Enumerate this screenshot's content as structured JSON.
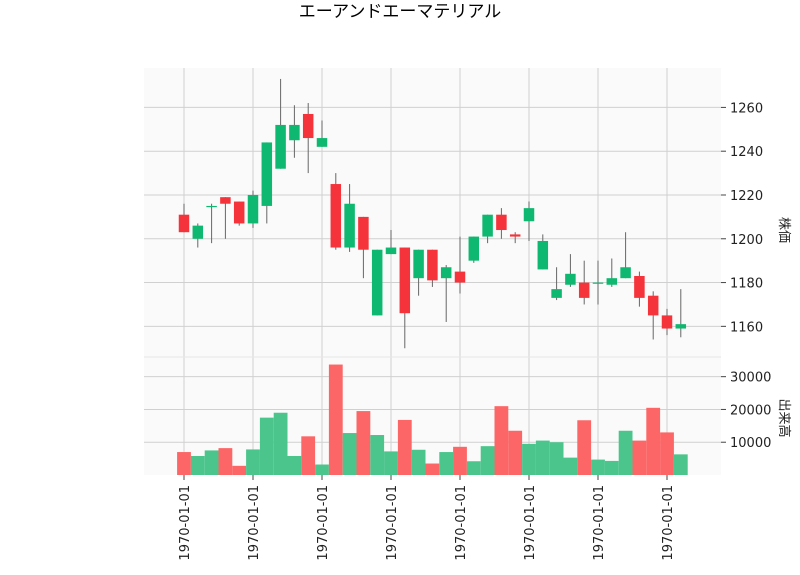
{
  "chart_data": {
    "type": "candlestick",
    "title": "エーアンドエーマテリアル",
    "ylabel_price": "株価",
    "ylabel_volume": "出来高",
    "x_tick_labels": [
      "1970-01-01",
      "1970-01-01",
      "1970-01-01",
      "1970-01-01",
      "1970-01-01",
      "1970-01-01",
      "1970-01-01",
      "1970-01-01"
    ],
    "x_tick_indices": [
      0,
      5,
      10,
      15,
      20,
      25,
      30,
      35
    ],
    "price_ylim": [
      1146,
      1278
    ],
    "price_ticks": [
      1160,
      1180,
      1200,
      1220,
      1240,
      1260
    ],
    "volume_ylim": [
      0,
      36000
    ],
    "volume_ticks": [
      10000,
      20000,
      30000
    ],
    "up_color": "#0fb870",
    "down_color": "#f5333b",
    "up_volume_color": "#4bc58c",
    "down_volume_color": "#fc6666",
    "grid": true,
    "candles": [
      {
        "o": 1211,
        "h": 1216,
        "l": 1203,
        "c": 1203,
        "v": 7000
      },
      {
        "o": 1200,
        "h": 1207,
        "l": 1196,
        "c": 1206,
        "v": 5800
      },
      {
        "o": 1215,
        "h": 1216,
        "l": 1198,
        "c": 1215,
        "v": 7500
      },
      {
        "o": 1219,
        "h": 1219,
        "l": 1200,
        "c": 1216,
        "v": 8200
      },
      {
        "o": 1217,
        "h": 1217,
        "l": 1206,
        "c": 1207,
        "v": 2800
      },
      {
        "o": 1207,
        "h": 1222,
        "l": 1205,
        "c": 1220,
        "v": 7800
      },
      {
        "o": 1215,
        "h": 1244,
        "l": 1207,
        "c": 1244,
        "v": 17500
      },
      {
        "o": 1232,
        "h": 1273,
        "l": 1232,
        "c": 1252,
        "v": 19000
      },
      {
        "o": 1245,
        "h": 1261,
        "l": 1237,
        "c": 1252,
        "v": 5800
      },
      {
        "o": 1257,
        "h": 1262,
        "l": 1230,
        "c": 1246,
        "v": 11800
      },
      {
        "o": 1242,
        "h": 1254,
        "l": 1242,
        "c": 1246,
        "v": 3200
      },
      {
        "o": 1225,
        "h": 1230,
        "l": 1195,
        "c": 1196,
        "v": 33700
      },
      {
        "o": 1196,
        "h": 1225,
        "l": 1194,
        "c": 1216,
        "v": 12800
      },
      {
        "o": 1210,
        "h": 1210,
        "l": 1182,
        "c": 1195,
        "v": 19500
      },
      {
        "o": 1165,
        "h": 1195,
        "l": 1165,
        "c": 1195,
        "v": 12200
      },
      {
        "o": 1193,
        "h": 1204,
        "l": 1193,
        "c": 1196,
        "v": 7200
      },
      {
        "o": 1196,
        "h": 1196,
        "l": 1150,
        "c": 1166,
        "v": 16800
      },
      {
        "o": 1182,
        "h": 1195,
        "l": 1174,
        "c": 1195,
        "v": 7700
      },
      {
        "o": 1195,
        "h": 1195,
        "l": 1178,
        "c": 1181,
        "v": 3500
      },
      {
        "o": 1182,
        "h": 1188,
        "l": 1162,
        "c": 1187,
        "v": 7000
      },
      {
        "o": 1185,
        "h": 1201,
        "l": 1175,
        "c": 1180,
        "v": 8600
      },
      {
        "o": 1190,
        "h": 1201,
        "l": 1189,
        "c": 1201,
        "v": 4200
      },
      {
        "o": 1201,
        "h": 1211,
        "l": 1198,
        "c": 1211,
        "v": 8800
      },
      {
        "o": 1211,
        "h": 1214,
        "l": 1200,
        "c": 1204,
        "v": 21000
      },
      {
        "o": 1202,
        "h": 1203,
        "l": 1198,
        "c": 1201,
        "v": 13500
      },
      {
        "o": 1208,
        "h": 1217,
        "l": 1199,
        "c": 1214,
        "v": 9500
      },
      {
        "o": 1186,
        "h": 1202,
        "l": 1186,
        "c": 1199,
        "v": 10500
      },
      {
        "o": 1173,
        "h": 1187,
        "l": 1172,
        "c": 1177,
        "v": 10000
      },
      {
        "o": 1179,
        "h": 1193,
        "l": 1178,
        "c": 1184,
        "v": 5300
      },
      {
        "o": 1180,
        "h": 1190,
        "l": 1170,
        "c": 1173,
        "v": 16700
      },
      {
        "o": 1180,
        "h": 1190,
        "l": 1170,
        "c": 1180,
        "v": 4700
      },
      {
        "o": 1179,
        "h": 1191,
        "l": 1178,
        "c": 1182,
        "v": 4300
      },
      {
        "o": 1182,
        "h": 1203,
        "l": 1182,
        "c": 1187,
        "v": 13500
      },
      {
        "o": 1183,
        "h": 1185,
        "l": 1169,
        "c": 1173,
        "v": 10500
      },
      {
        "o": 1174,
        "h": 1176,
        "l": 1154,
        "c": 1165,
        "v": 20500
      },
      {
        "o": 1165,
        "h": 1168,
        "l": 1156,
        "c": 1159,
        "v": 13000
      },
      {
        "o": 1159,
        "h": 1177,
        "l": 1155,
        "c": 1161,
        "v": 6300
      }
    ]
  }
}
